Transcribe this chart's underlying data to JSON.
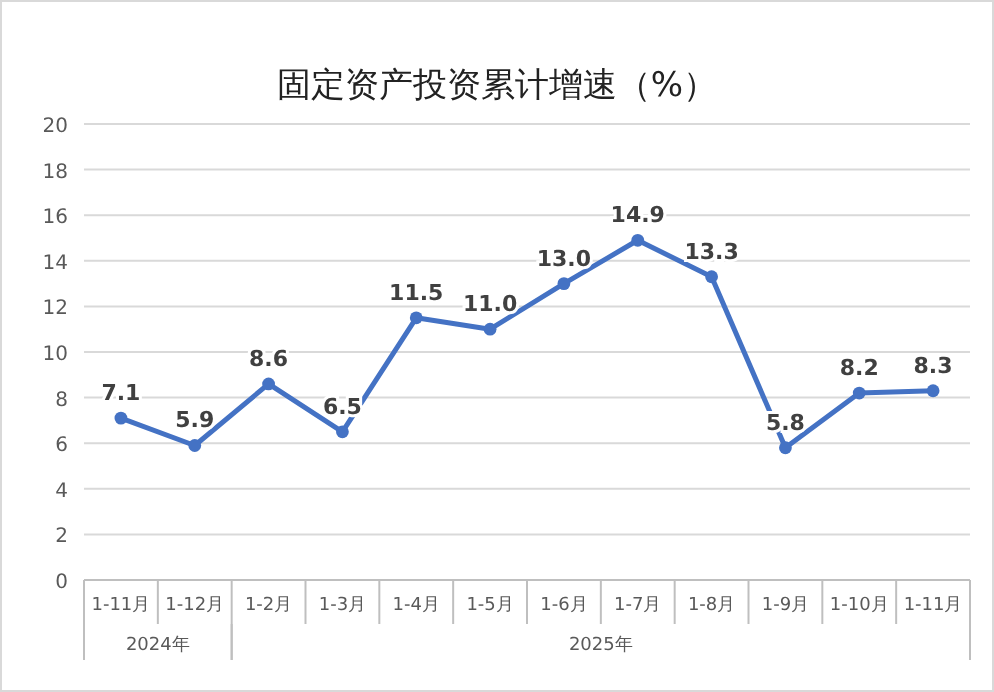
{
  "chart_data": {
    "type": "line",
    "title": "固定资产投资累计增速（%）",
    "categories": [
      "1-11月",
      "1-12月",
      "1-2月",
      "1-3月",
      "1-4月",
      "1-5月",
      "1-6月",
      "1-7月",
      "1-8月",
      "1-9月",
      "1-10月",
      "1-11月"
    ],
    "series": [
      {
        "color": "#4472c4",
        "values": [
          7.1,
          5.9,
          8.6,
          6.5,
          11.5,
          11.0,
          13.0,
          14.9,
          13.3,
          5.8,
          8.2,
          8.3
        ],
        "value_labels": [
          "7.1",
          "5.9",
          "8.6",
          "6.5",
          "11.5",
          "11.0",
          "13.0",
          "14.9",
          "13.3",
          "5.8",
          "8.2",
          "8.3"
        ]
      }
    ],
    "annotations": [
      "2024年",
      "2025年"
    ],
    "ylim": [
      0,
      20
    ],
    "yticks": [
      0,
      2,
      4,
      6,
      8,
      10,
      12,
      14,
      16,
      18,
      20
    ],
    "grid": "y",
    "marker": "circle",
    "line_style": "solid"
  }
}
